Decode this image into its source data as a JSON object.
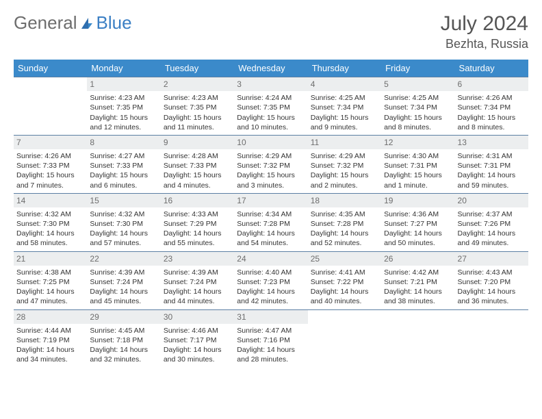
{
  "brand": {
    "part1": "General",
    "part2": "Blue"
  },
  "title": "July 2024",
  "location": "Bezhta, Russia",
  "colors": {
    "header_bg": "#3b8aca",
    "header_text": "#ffffff",
    "daynum_bg": "#eceeef",
    "row_border": "#5b7fa3",
    "text": "#333333"
  },
  "weekdays": [
    "Sunday",
    "Monday",
    "Tuesday",
    "Wednesday",
    "Thursday",
    "Friday",
    "Saturday"
  ],
  "first_weekday_offset": 1,
  "days": [
    {
      "n": 1,
      "sr": "4:23 AM",
      "ss": "7:35 PM",
      "dl": "15 hours and 12 minutes."
    },
    {
      "n": 2,
      "sr": "4:23 AM",
      "ss": "7:35 PM",
      "dl": "15 hours and 11 minutes."
    },
    {
      "n": 3,
      "sr": "4:24 AM",
      "ss": "7:35 PM",
      "dl": "15 hours and 10 minutes."
    },
    {
      "n": 4,
      "sr": "4:25 AM",
      "ss": "7:34 PM",
      "dl": "15 hours and 9 minutes."
    },
    {
      "n": 5,
      "sr": "4:25 AM",
      "ss": "7:34 PM",
      "dl": "15 hours and 8 minutes."
    },
    {
      "n": 6,
      "sr": "4:26 AM",
      "ss": "7:34 PM",
      "dl": "15 hours and 8 minutes."
    },
    {
      "n": 7,
      "sr": "4:26 AM",
      "ss": "7:33 PM",
      "dl": "15 hours and 7 minutes."
    },
    {
      "n": 8,
      "sr": "4:27 AM",
      "ss": "7:33 PM",
      "dl": "15 hours and 6 minutes."
    },
    {
      "n": 9,
      "sr": "4:28 AM",
      "ss": "7:33 PM",
      "dl": "15 hours and 4 minutes."
    },
    {
      "n": 10,
      "sr": "4:29 AM",
      "ss": "7:32 PM",
      "dl": "15 hours and 3 minutes."
    },
    {
      "n": 11,
      "sr": "4:29 AM",
      "ss": "7:32 PM",
      "dl": "15 hours and 2 minutes."
    },
    {
      "n": 12,
      "sr": "4:30 AM",
      "ss": "7:31 PM",
      "dl": "15 hours and 1 minute."
    },
    {
      "n": 13,
      "sr": "4:31 AM",
      "ss": "7:31 PM",
      "dl": "14 hours and 59 minutes."
    },
    {
      "n": 14,
      "sr": "4:32 AM",
      "ss": "7:30 PM",
      "dl": "14 hours and 58 minutes."
    },
    {
      "n": 15,
      "sr": "4:32 AM",
      "ss": "7:30 PM",
      "dl": "14 hours and 57 minutes."
    },
    {
      "n": 16,
      "sr": "4:33 AM",
      "ss": "7:29 PM",
      "dl": "14 hours and 55 minutes."
    },
    {
      "n": 17,
      "sr": "4:34 AM",
      "ss": "7:28 PM",
      "dl": "14 hours and 54 minutes."
    },
    {
      "n": 18,
      "sr": "4:35 AM",
      "ss": "7:28 PM",
      "dl": "14 hours and 52 minutes."
    },
    {
      "n": 19,
      "sr": "4:36 AM",
      "ss": "7:27 PM",
      "dl": "14 hours and 50 minutes."
    },
    {
      "n": 20,
      "sr": "4:37 AM",
      "ss": "7:26 PM",
      "dl": "14 hours and 49 minutes."
    },
    {
      "n": 21,
      "sr": "4:38 AM",
      "ss": "7:25 PM",
      "dl": "14 hours and 47 minutes."
    },
    {
      "n": 22,
      "sr": "4:39 AM",
      "ss": "7:24 PM",
      "dl": "14 hours and 45 minutes."
    },
    {
      "n": 23,
      "sr": "4:39 AM",
      "ss": "7:24 PM",
      "dl": "14 hours and 44 minutes."
    },
    {
      "n": 24,
      "sr": "4:40 AM",
      "ss": "7:23 PM",
      "dl": "14 hours and 42 minutes."
    },
    {
      "n": 25,
      "sr": "4:41 AM",
      "ss": "7:22 PM",
      "dl": "14 hours and 40 minutes."
    },
    {
      "n": 26,
      "sr": "4:42 AM",
      "ss": "7:21 PM",
      "dl": "14 hours and 38 minutes."
    },
    {
      "n": 27,
      "sr": "4:43 AM",
      "ss": "7:20 PM",
      "dl": "14 hours and 36 minutes."
    },
    {
      "n": 28,
      "sr": "4:44 AM",
      "ss": "7:19 PM",
      "dl": "14 hours and 34 minutes."
    },
    {
      "n": 29,
      "sr": "4:45 AM",
      "ss": "7:18 PM",
      "dl": "14 hours and 32 minutes."
    },
    {
      "n": 30,
      "sr": "4:46 AM",
      "ss": "7:17 PM",
      "dl": "14 hours and 30 minutes."
    },
    {
      "n": 31,
      "sr": "4:47 AM",
      "ss": "7:16 PM",
      "dl": "14 hours and 28 minutes."
    }
  ],
  "labels": {
    "sunrise": "Sunrise:",
    "sunset": "Sunset:",
    "daylight": "Daylight:"
  }
}
